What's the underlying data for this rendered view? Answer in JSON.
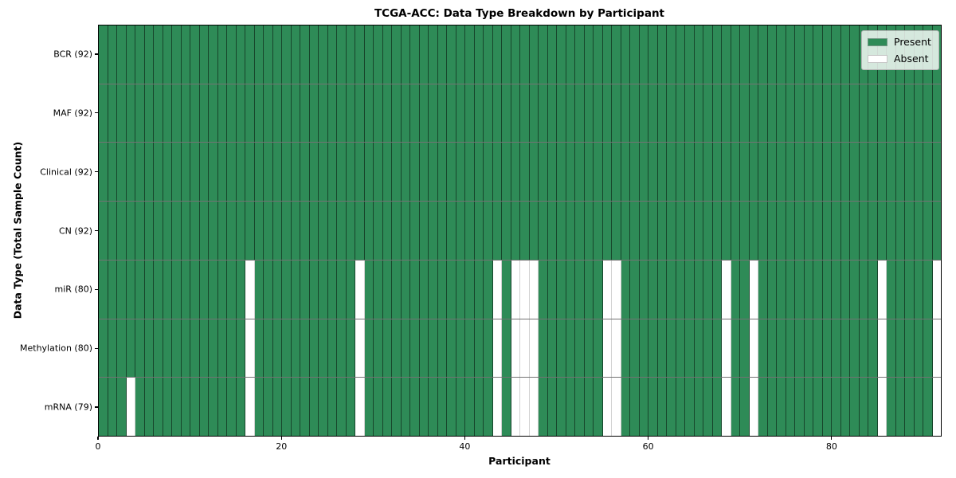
{
  "chart_data": {
    "type": "heatmap",
    "title": "TCGA-ACC: Data Type Breakdown by Participant",
    "xlabel": "Participant",
    "ylabel": "Data Type (Total Sample Count)",
    "x_ticks": [
      0,
      20,
      40,
      60,
      80
    ],
    "x_range": [
      0,
      92
    ],
    "n_participants": 92,
    "grid": "cell-borders",
    "legend": {
      "position": "upper-right",
      "entries": [
        {
          "label": "Present",
          "color": "#2e8b57"
        },
        {
          "label": "Absent",
          "color": "#ffffff"
        }
      ]
    },
    "colors": {
      "present": "#2e8b57",
      "absent": "#ffffff"
    },
    "rows": [
      {
        "label": "BCR (92)",
        "data_type": "BCR",
        "present_count": 92,
        "absent_indices": []
      },
      {
        "label": "MAF (92)",
        "data_type": "MAF",
        "present_count": 92,
        "absent_indices": []
      },
      {
        "label": "Clinical (92)",
        "data_type": "Clinical",
        "present_count": 92,
        "absent_indices": []
      },
      {
        "label": "CN (92)",
        "data_type": "CN",
        "present_count": 92,
        "absent_indices": []
      },
      {
        "label": "miR (80)",
        "data_type": "miR",
        "present_count": 80,
        "absent_indices": [
          16,
          28,
          43,
          45,
          46,
          47,
          55,
          56,
          68,
          71,
          85,
          91
        ]
      },
      {
        "label": "Methylation (80)",
        "data_type": "Methylation",
        "present_count": 80,
        "absent_indices": [
          16,
          28,
          43,
          45,
          46,
          47,
          55,
          56,
          68,
          71,
          85,
          91
        ]
      },
      {
        "label": "mRNA (79)",
        "data_type": "mRNA",
        "present_count": 79,
        "absent_indices": [
          3,
          16,
          28,
          43,
          45,
          46,
          47,
          55,
          56,
          68,
          71,
          85,
          91
        ]
      }
    ]
  }
}
